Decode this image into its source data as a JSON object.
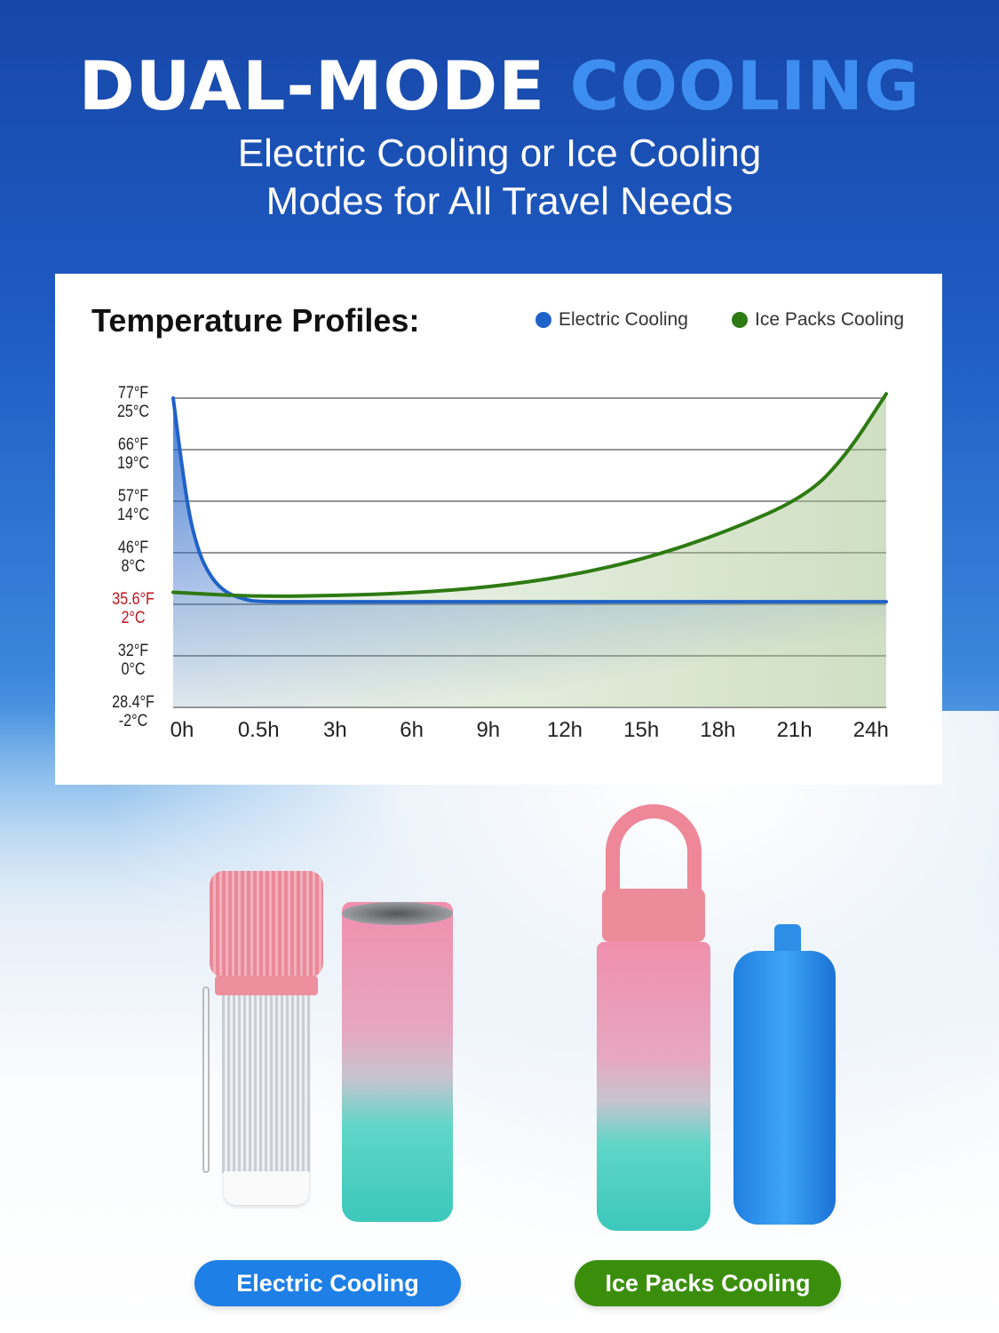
{
  "header": {
    "title_main": "DUAL-MODE",
    "title_accent": "COOLING",
    "subtitle_line1": "Electric Cooling or Ice Cooling",
    "subtitle_line2": "Modes for All Travel Needs"
  },
  "colors": {
    "electric": "#1f62c9",
    "ice": "#2e7a12",
    "highlight_tick": "#c0141c",
    "button_electric": "#1e7fe6",
    "button_ice": "#3a8e0c",
    "title_accent": "#3d8ef0"
  },
  "chart_data": {
    "type": "line",
    "title": "Temperature Profiles:",
    "legend": [
      "Electric Cooling",
      "Ice Packs Cooling"
    ],
    "legend_placement": "top-right",
    "grid": true,
    "xlabel": "",
    "ylabel": "",
    "x_ticks": [
      "0h",
      "0.5h",
      "3h",
      "6h",
      "9h",
      "12h",
      "15h",
      "18h",
      "21h",
      "24h"
    ],
    "x_tick_hours": [
      0,
      0.5,
      3,
      6,
      9,
      12,
      15,
      18,
      21,
      24
    ],
    "y_ticks": [
      {
        "f": "77°F",
        "c": "25°C",
        "value_c": 25
      },
      {
        "f": "66°F",
        "c": "19°C",
        "value_c": 19
      },
      {
        "f": "57°F",
        "c": "14°C",
        "value_c": 14
      },
      {
        "f": "46°F",
        "c": "8°C",
        "value_c": 8
      },
      {
        "f": "35.6°F",
        "c": "2°C",
        "value_c": 2,
        "highlight": true
      },
      {
        "f": "32°F",
        "c": "0°C",
        "value_c": 0
      },
      {
        "f": "28.4°F",
        "c": "-2°C",
        "value_c": -2
      }
    ],
    "series": [
      {
        "name": "Electric Cooling",
        "color": "#1f62c9",
        "points": [
          [
            0,
            25
          ],
          [
            0.05,
            18
          ],
          [
            0.1,
            12.5
          ],
          [
            0.15,
            8.8
          ],
          [
            0.2,
            6.4
          ],
          [
            0.27,
            4.4
          ],
          [
            0.35,
            3.2
          ],
          [
            0.45,
            2.6
          ],
          [
            0.6,
            2.3
          ],
          [
            3,
            2.3
          ],
          [
            24,
            2.3
          ]
        ]
      },
      {
        "name": "Ice Packs Cooling",
        "color": "#2e7a12",
        "points": [
          [
            0,
            3.4
          ],
          [
            0.5,
            2.9
          ],
          [
            3,
            3.0
          ],
          [
            6,
            3.3
          ],
          [
            9,
            4.0
          ],
          [
            12,
            5.3
          ],
          [
            15,
            7.4
          ],
          [
            18,
            10.5
          ],
          [
            21,
            14.5
          ],
          [
            22.5,
            18.5
          ],
          [
            24,
            25.5
          ]
        ]
      }
    ]
  },
  "products": {
    "electric_label": "Electric Cooling",
    "ice_label": "Ice Packs Cooling"
  }
}
